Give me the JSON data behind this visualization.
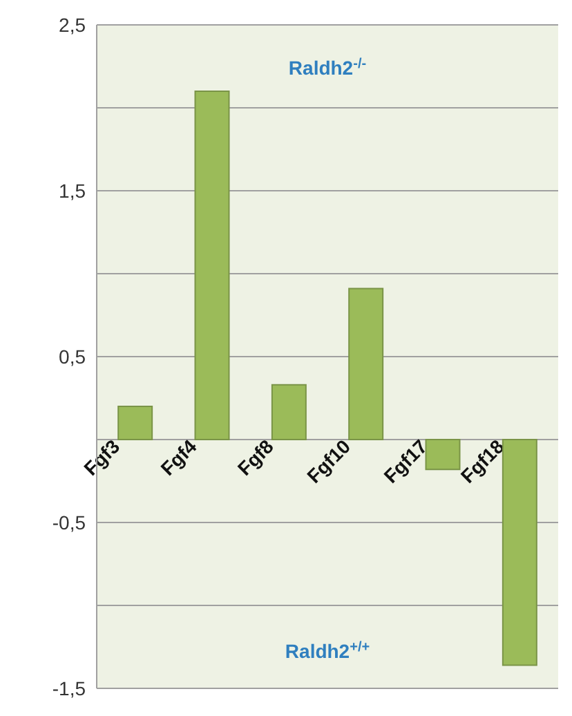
{
  "chart_data": {
    "type": "bar",
    "categories": [
      "Fgf3",
      "Fgf4",
      "Fgf8",
      "Fgf10",
      "Fgf17",
      "Fgf18"
    ],
    "values": [
      0.2,
      2.1,
      0.33,
      0.91,
      -0.18,
      -1.36
    ],
    "color": "#9bbb59",
    "ylim": [
      -1.5,
      2.5
    ],
    "yticks": [
      {
        "value": -1.5,
        "label": "-1,5"
      },
      {
        "value": -1,
        "label": null
      },
      {
        "value": -0.5,
        "label": "-0,5"
      },
      {
        "value": 0,
        "label": null
      },
      {
        "value": 0.5,
        "label": "0,5"
      },
      {
        "value": 1,
        "label": null
      },
      {
        "value": 1.5,
        "label": "1,5"
      },
      {
        "value": 2,
        "label": null
      },
      {
        "value": 2.5,
        "label": "2,5"
      }
    ],
    "grid": "y",
    "annotations": [
      "Raldh2$^{-/-}$",
      "Raldh2$^{+/+}$"
    ]
  }
}
